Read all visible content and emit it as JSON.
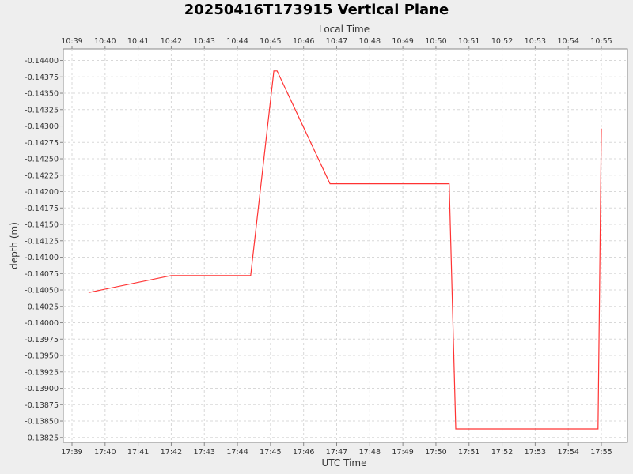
{
  "chart_data": {
    "type": "line",
    "title": "20250416T173915 Vertical Plane",
    "xlabel": "UTC Time",
    "x2label": "Local Time",
    "ylabel": "depth (m)",
    "x_ticks_utc": [
      "17:39",
      "17:40",
      "17:41",
      "17:42",
      "17:43",
      "17:44",
      "17:45",
      "17:46",
      "17:47",
      "17:48",
      "17:49",
      "17:50",
      "17:51",
      "17:52",
      "17:53",
      "17:54",
      "17:55"
    ],
    "x_ticks_local": [
      "10:39",
      "10:40",
      "10:41",
      "10:42",
      "10:43",
      "10:44",
      "10:45",
      "10:46",
      "10:47",
      "10:48",
      "10:49",
      "10:50",
      "10:51",
      "10:52",
      "10:53",
      "10:54",
      "10:55"
    ],
    "y_ticks": [
      "-0.14400",
      "-0.14375",
      "-0.14350",
      "-0.14325",
      "-0.14300",
      "-0.14275",
      "-0.14250",
      "-0.14225",
      "-0.14200",
      "-0.14175",
      "-0.14150",
      "-0.14125",
      "-0.14100",
      "-0.14075",
      "-0.14050",
      "-0.14025",
      "-0.14000",
      "-0.13975",
      "-0.13950",
      "-0.13925",
      "-0.13900",
      "-0.13875",
      "-0.13850",
      "-0.13825"
    ],
    "ylim": [
      -0.144175,
      -0.138175
    ],
    "y_inverted": true,
    "grid": true,
    "series": [
      {
        "color": "#ff3333",
        "x": [
          "17:39:30",
          "17:42:00",
          "17:44:24",
          "17:45:06",
          "17:45:12",
          "17:46:48",
          "17:50:24",
          "17:50:36",
          "17:54:54",
          "17:55:00"
        ],
        "y": [
          -0.14046,
          -0.14072,
          -0.14072,
          -0.14384,
          -0.14384,
          -0.14212,
          -0.14212,
          -0.13838,
          -0.13838,
          -0.14296
        ]
      }
    ]
  }
}
